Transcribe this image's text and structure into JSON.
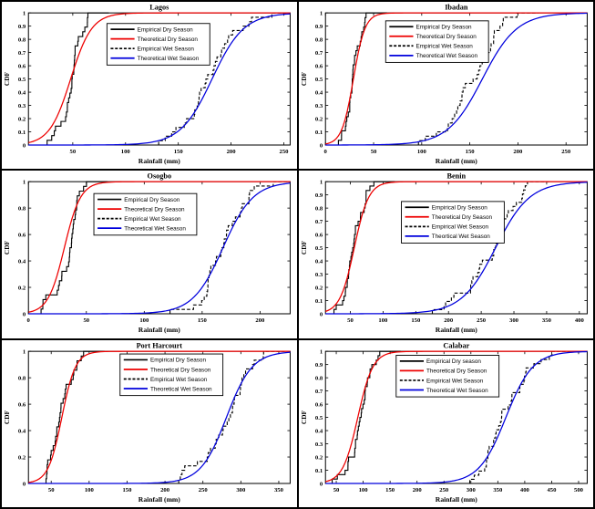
{
  "figure": {
    "background": "#ffffff",
    "border_color": "#000000",
    "colors": {
      "empirical": "#000000",
      "theoretical_dry": "#ee0000",
      "theoretical_wet": "#0000dd",
      "axis": "#000000",
      "legend_border": "#000000"
    }
  },
  "chart_data": {
    "type": "line",
    "description": "Empirical and theoretical cumulative distribution functions (CDF) of seasonal rainfall for six Nigerian stations",
    "grid": "off",
    "ylim": [
      0,
      1
    ],
    "panels": [
      {
        "slug": "lagos",
        "title": "Lagos",
        "xlabel": "Rainfall (mm)",
        "ylabel": "CDF",
        "xlim": [
          8,
          256
        ],
        "xticks": [
          50,
          100,
          150,
          200,
          250
        ],
        "yticks": [
          0,
          0.1,
          0.2,
          0.3,
          0.4,
          0.5,
          0.6,
          0.7,
          0.8,
          0.9,
          1
        ],
        "legend_pos": [
          0.3,
          0.08
        ],
        "legend": [
          {
            "label": "Empirical Dry Season",
            "color": "#000000",
            "dash": false
          },
          {
            "label": "Theoretical Dry Season",
            "color": "#ee0000",
            "dash": false
          },
          {
            "label": "Empirical Wet Season",
            "color": "#000000",
            "dash": true
          },
          {
            "label": "Theoretical Wet Season",
            "color": "#0000dd",
            "dash": false
          }
        ],
        "series": [
          {
            "name": "Empirical Dry Season",
            "kind": "empirical",
            "color": "#000000",
            "dash": false,
            "mu": 48,
            "s": 10,
            "n": 28,
            "seed": 11
          },
          {
            "name": "Theoretical Dry Season",
            "kind": "theoretical",
            "color": "#ee0000",
            "dash": false,
            "mu": 48,
            "s": 10
          },
          {
            "name": "Empirical Wet Season",
            "kind": "empirical",
            "color": "#000000",
            "dash": true,
            "mu": 182,
            "s": 15,
            "n": 30,
            "seed": 12
          },
          {
            "name": "Theoretical Wet Season",
            "kind": "theoretical",
            "color": "#0000dd",
            "dash": false,
            "mu": 182,
            "s": 15
          }
        ]
      },
      {
        "slug": "ibadan",
        "title": "Ibadan",
        "xlabel": "Rainfall (mm)",
        "ylabel": "CDF",
        "xlim": [
          0,
          272
        ],
        "xticks": [
          0,
          50,
          100,
          150,
          200,
          250
        ],
        "yticks": [
          0,
          0.1,
          0.2,
          0.3,
          0.4,
          0.5,
          0.6,
          0.7,
          0.8,
          0.9,
          1
        ],
        "legend_pos": [
          0.23,
          0.06
        ],
        "legend": [
          {
            "label": "Empirical Dry Season",
            "color": "#000000",
            "dash": false
          },
          {
            "label": "Theoretical Dry Season",
            "color": "#ee0000",
            "dash": false
          },
          {
            "label": "Empirical Wet Season",
            "color": "#000000",
            "dash": true
          },
          {
            "label": "Theoretical Wet Season",
            "color": "#0000dd",
            "dash": false
          }
        ],
        "series": [
          {
            "name": "Empirical Dry Season",
            "kind": "empirical",
            "color": "#000000",
            "dash": false,
            "mu": 29,
            "s": 6,
            "n": 28,
            "seed": 21
          },
          {
            "name": "Theoretical Dry Season",
            "kind": "theoretical",
            "color": "#ee0000",
            "dash": false,
            "mu": 29,
            "s": 6
          },
          {
            "name": "Empirical Wet Season",
            "kind": "empirical",
            "color": "#000000",
            "dash": true,
            "mu": 163,
            "s": 18,
            "n": 30,
            "seed": 22
          },
          {
            "name": "Theoretical Wet Season",
            "kind": "theoretical",
            "color": "#0000dd",
            "dash": false,
            "mu": 163,
            "s": 18
          }
        ]
      },
      {
        "slug": "osogbo",
        "title": "Osogbo",
        "xlabel": "Rainfall (mm)",
        "ylabel": "CDF",
        "xlim": [
          0,
          226
        ],
        "xticks": [
          0,
          50,
          100,
          150,
          200
        ],
        "yticks": [
          0,
          0.2,
          0.4,
          0.6,
          0.8,
          1
        ],
        "legend_pos": [
          0.25,
          0.09
        ],
        "legend": [
          {
            "label": "Empirical Dry Season",
            "color": "#000000",
            "dash": false
          },
          {
            "label": "Theoretical Dry Season",
            "color": "#ee0000",
            "dash": false
          },
          {
            "label": "Empirical Wet Season",
            "color": "#000000",
            "dash": true
          },
          {
            "label": "Theoretical Wet Season",
            "color": "#0000dd",
            "dash": false
          }
        ],
        "series": [
          {
            "name": "Empirical Dry Season",
            "kind": "empirical",
            "color": "#000000",
            "dash": false,
            "mu": 31,
            "s": 7,
            "n": 28,
            "seed": 31
          },
          {
            "name": "Theoretical Dry Season",
            "kind": "theoretical",
            "color": "#ee0000",
            "dash": false,
            "mu": 31,
            "s": 7
          },
          {
            "name": "Empirical Wet Season",
            "kind": "empirical",
            "color": "#000000",
            "dash": true,
            "mu": 168,
            "s": 13,
            "n": 30,
            "seed": 32
          },
          {
            "name": "Theoretical Wet Season",
            "kind": "theoretical",
            "color": "#0000dd",
            "dash": false,
            "mu": 168,
            "s": 13
          }
        ]
      },
      {
        "slug": "benin",
        "title": "Benin",
        "xlabel": "Rainfall (mm)",
        "ylabel": "CDF",
        "xlim": [
          12,
          412
        ],
        "xticks": [
          50,
          100,
          150,
          200,
          250,
          300,
          350,
          400
        ],
        "yticks": [
          0,
          0.1,
          0.2,
          0.3,
          0.4,
          0.5,
          0.6,
          0.7,
          0.8,
          0.9,
          1
        ],
        "legend_pos": [
          0.29,
          0.15
        ],
        "legend": [
          {
            "label": "Empirical Dry Season",
            "color": "#000000",
            "dash": false
          },
          {
            "label": "Theoretical Dry Season",
            "color": "#ee0000",
            "dash": false
          },
          {
            "label": "Empirical Wet Season",
            "color": "#000000",
            "dash": true
          },
          {
            "label": "Theortical Wet Season",
            "color": "#0000dd",
            "dash": false
          }
        ],
        "series": [
          {
            "name": "Empirical Dry Season",
            "kind": "empirical",
            "color": "#000000",
            "dash": false,
            "mu": 56,
            "s": 11,
            "n": 30,
            "seed": 41
          },
          {
            "name": "Theoretical Dry Season",
            "kind": "theoretical",
            "color": "#ee0000",
            "dash": false,
            "mu": 56,
            "s": 11
          },
          {
            "name": "Empirical Wet Season",
            "kind": "empirical",
            "color": "#000000",
            "dash": true,
            "mu": 272,
            "s": 26,
            "n": 32,
            "seed": 42
          },
          {
            "name": "Theortical Wet Season",
            "kind": "theoretical",
            "color": "#0000dd",
            "dash": false,
            "mu": 272,
            "s": 26
          }
        ]
      },
      {
        "slug": "port-harcourt",
        "title": "Port Harcourt",
        "xlabel": "Rainfall (mm)",
        "ylabel": "CDF",
        "xlim": [
          20,
          365
        ],
        "xticks": [
          50,
          100,
          150,
          200,
          250,
          300,
          350
        ],
        "yticks": [
          0,
          0.2,
          0.4,
          0.6,
          0.8,
          1
        ],
        "legend_pos": [
          0.35,
          0.02
        ],
        "legend": [
          {
            "label": "Empirical Dry Season",
            "color": "#000000",
            "dash": false
          },
          {
            "label": "Theoretical Dry Season",
            "color": "#ee0000",
            "dash": false
          },
          {
            "label": "Empirical Wet Season",
            "color": "#000000",
            "dash": true
          },
          {
            "label": "Theoretical Wet Season",
            "color": "#0000dd",
            "dash": false
          }
        ],
        "series": [
          {
            "name": "Empirical Dry Season",
            "kind": "empirical",
            "color": "#000000",
            "dash": false,
            "mu": 64,
            "s": 9,
            "n": 28,
            "seed": 51
          },
          {
            "name": "Theoretical Dry Season",
            "kind": "theoretical",
            "color": "#ee0000",
            "dash": false,
            "mu": 64,
            "s": 9
          },
          {
            "name": "Empirical Wet Season",
            "kind": "empirical",
            "color": "#000000",
            "dash": true,
            "mu": 281,
            "s": 17,
            "n": 30,
            "seed": 52
          },
          {
            "name": "Theoretical Wet Season",
            "kind": "theoretical",
            "color": "#0000dd",
            "dash": false,
            "mu": 281,
            "s": 17
          }
        ]
      },
      {
        "slug": "calabar",
        "title": "Calabar",
        "xlabel": "Rainfall (mm)",
        "ylabel": "CDF",
        "xlim": [
          30,
          516
        ],
        "xticks": [
          50,
          100,
          150,
          200,
          250,
          300,
          350,
          400,
          450,
          500
        ],
        "yticks": [
          0,
          0.1,
          0.2,
          0.3,
          0.4,
          0.5,
          0.6,
          0.7,
          0.8,
          0.9,
          1
        ],
        "legend_pos": [
          0.27,
          0.03
        ],
        "legend": [
          {
            "label": "Empirical Dry season",
            "color": "#000000",
            "dash": false
          },
          {
            "label": "Theoretical Dry Season",
            "color": "#ee0000",
            "dash": false
          },
          {
            "label": "Empirical Wet Season",
            "color": "#000000",
            "dash": true
          },
          {
            "label": "Theoretical Wet Season",
            "color": "#0000dd",
            "dash": false
          }
        ],
        "series": [
          {
            "name": "Empirical Dry season",
            "kind": "empirical",
            "color": "#000000",
            "dash": false,
            "mu": 90,
            "s": 14,
            "n": 30,
            "seed": 61
          },
          {
            "name": "Theoretical Dry Season",
            "kind": "theoretical",
            "color": "#ee0000",
            "dash": false,
            "mu": 90,
            "s": 14
          },
          {
            "name": "Empirical Wet Season",
            "kind": "empirical",
            "color": "#000000",
            "dash": true,
            "mu": 365,
            "s": 25,
            "n": 32,
            "seed": 62
          },
          {
            "name": "Theoretical Wet Season",
            "kind": "theoretical",
            "color": "#0000dd",
            "dash": false,
            "mu": 365,
            "s": 25
          }
        ]
      }
    ]
  }
}
